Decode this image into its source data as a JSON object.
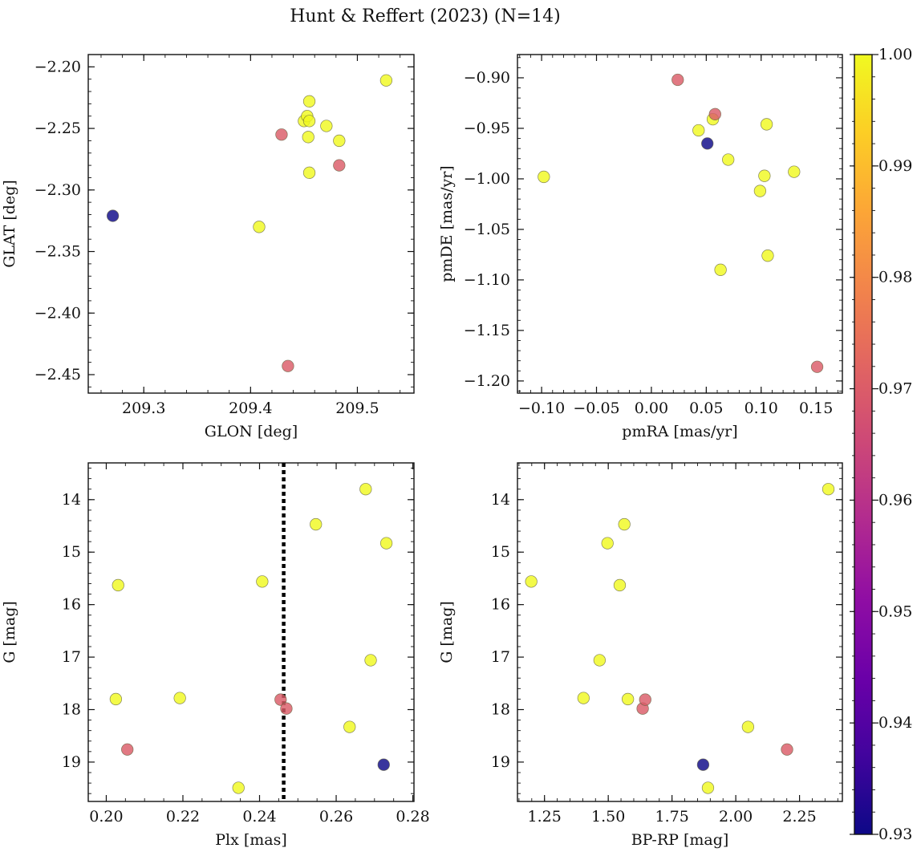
{
  "title": "Hunt & Reffert (2023) (N=14)",
  "chart_data": {
    "type": "scatter",
    "colormap": "plasma",
    "colorbar": {
      "range": [
        0.93,
        1.0
      ],
      "ticks": [
        0.93,
        0.94,
        0.95,
        0.96,
        0.97,
        0.98,
        0.99,
        1.0
      ],
      "tick_labels": [
        "0.93",
        "0.94",
        "0.95",
        "0.96",
        "0.97",
        "0.98",
        "0.99",
        "1.00"
      ]
    },
    "panels": [
      {
        "name": "glon-glat",
        "xlabel": "GLON [deg]",
        "ylabel": "GLAT [deg]",
        "xlim": [
          209.248,
          209.553
        ],
        "ylim": [
          -2.465,
          -2.19
        ],
        "y_inverted": false,
        "xticks": [
          209.3,
          209.4,
          209.5
        ],
        "xtick_labels": [
          "209.3",
          "209.4",
          "209.5"
        ],
        "yticks": [
          -2.2,
          -2.25,
          -2.3,
          -2.35,
          -2.4,
          -2.45
        ],
        "ytick_labels": [
          "−2.20",
          "−2.25",
          "−2.30",
          "−2.35",
          "−2.40",
          "−2.45"
        ],
        "x_minor_step": 0.02,
        "y_minor_step": 0.01,
        "points": [
          {
            "x": 209.271,
            "y": -2.321,
            "c": 0.93
          },
          {
            "x": 209.408,
            "y": -2.33,
            "c": 1.0
          },
          {
            "x": 209.429,
            "y": -2.255,
            "c": 0.97
          },
          {
            "x": 209.435,
            "y": -2.443,
            "c": 0.97
          },
          {
            "x": 209.45,
            "y": -2.244,
            "c": 1.0
          },
          {
            "x": 209.453,
            "y": -2.24,
            "c": 1.0
          },
          {
            "x": 209.454,
            "y": -2.257,
            "c": 1.0
          },
          {
            "x": 209.455,
            "y": -2.228,
            "c": 1.0
          },
          {
            "x": 209.455,
            "y": -2.244,
            "c": 1.0
          },
          {
            "x": 209.455,
            "y": -2.286,
            "c": 1.0
          },
          {
            "x": 209.471,
            "y": -2.248,
            "c": 1.0
          },
          {
            "x": 209.483,
            "y": -2.26,
            "c": 1.0
          },
          {
            "x": 209.483,
            "y": -2.28,
            "c": 0.97
          },
          {
            "x": 209.527,
            "y": -2.211,
            "c": 1.0
          }
        ]
      },
      {
        "name": "pmra-pmde",
        "xlabel": "pmRA [mas/yr]",
        "ylabel": "pmDE [mas/yr]",
        "xlim": [
          -0.122,
          0.174
        ],
        "ylim": [
          -1.212,
          -0.877
        ],
        "y_inverted": false,
        "xticks": [
          -0.1,
          -0.05,
          0.0,
          0.05,
          0.1,
          0.15
        ],
        "xtick_labels": [
          "−0.10",
          "−0.05",
          "0.00",
          "0.05",
          "0.10",
          "0.15"
        ],
        "yticks": [
          -0.9,
          -0.95,
          -1.0,
          -1.05,
          -1.1,
          -1.15,
          -1.2
        ],
        "ytick_labels": [
          "−0.90",
          "−0.95",
          "−1.00",
          "−1.05",
          "−1.10",
          "−1.15",
          "−1.20"
        ],
        "x_minor_step": 0.01,
        "y_minor_step": 0.01,
        "points": [
          {
            "x": -0.098,
            "y": -0.998,
            "c": 1.0
          },
          {
            "x": 0.024,
            "y": -0.902,
            "c": 0.97
          },
          {
            "x": 0.043,
            "y": -0.952,
            "c": 1.0
          },
          {
            "x": 0.051,
            "y": -0.965,
            "c": 0.93
          },
          {
            "x": 0.056,
            "y": -0.941,
            "c": 1.0
          },
          {
            "x": 0.058,
            "y": -0.936,
            "c": 0.97
          },
          {
            "x": 0.063,
            "y": -1.09,
            "c": 1.0
          },
          {
            "x": 0.07,
            "y": -0.981,
            "c": 1.0
          },
          {
            "x": 0.099,
            "y": -1.012,
            "c": 1.0
          },
          {
            "x": 0.103,
            "y": -0.997,
            "c": 1.0
          },
          {
            "x": 0.105,
            "y": -0.946,
            "c": 1.0
          },
          {
            "x": 0.106,
            "y": -1.076,
            "c": 1.0
          },
          {
            "x": 0.13,
            "y": -0.993,
            "c": 1.0
          },
          {
            "x": 0.151,
            "y": -1.186,
            "c": 0.97
          }
        ]
      },
      {
        "name": "plx-g",
        "xlabel": "Plx [mas]",
        "ylabel": "G [mag]",
        "xlim": [
          0.1953,
          0.2803
        ],
        "ylim": [
          13.3,
          19.75
        ],
        "y_inverted": true,
        "xticks": [
          0.2,
          0.22,
          0.24,
          0.26,
          0.28
        ],
        "xtick_labels": [
          "0.20",
          "0.22",
          "0.24",
          "0.26",
          "0.28"
        ],
        "yticks": [
          14,
          15,
          16,
          17,
          18,
          19
        ],
        "ytick_labels": [
          "14",
          "15",
          "16",
          "17",
          "18",
          "19"
        ],
        "x_minor_step": 0.005,
        "y_minor_step": 0.2,
        "vline": {
          "x": 0.2463,
          "style": "dotted"
        },
        "points": [
          {
            "x": 0.2025,
            "y": 17.8,
            "c": 1.0
          },
          {
            "x": 0.2031,
            "y": 15.63,
            "c": 1.0
          },
          {
            "x": 0.2055,
            "y": 18.76,
            "c": 0.97
          },
          {
            "x": 0.2192,
            "y": 17.78,
            "c": 1.0
          },
          {
            "x": 0.2345,
            "y": 19.49,
            "c": 1.0
          },
          {
            "x": 0.2407,
            "y": 15.56,
            "c": 1.0
          },
          {
            "x": 0.2455,
            "y": 17.81,
            "c": 0.97
          },
          {
            "x": 0.247,
            "y": 17.98,
            "c": 0.97
          },
          {
            "x": 0.2547,
            "y": 14.47,
            "c": 1.0
          },
          {
            "x": 0.2635,
            "y": 18.33,
            "c": 1.0
          },
          {
            "x": 0.2677,
            "y": 13.8,
            "c": 1.0
          },
          {
            "x": 0.269,
            "y": 17.06,
            "c": 1.0
          },
          {
            "x": 0.2724,
            "y": 19.05,
            "c": 0.93
          },
          {
            "x": 0.2731,
            "y": 14.83,
            "c": 1.0
          }
        ]
      },
      {
        "name": "bprp-g",
        "xlabel": "BP-RP [mag]",
        "ylabel": "G [mag]",
        "xlim": [
          1.144,
          2.418
        ],
        "ylim": [
          13.3,
          19.75
        ],
        "y_inverted": true,
        "xticks": [
          1.25,
          1.5,
          1.75,
          2.0,
          2.25
        ],
        "xtick_labels": [
          "1.25",
          "1.50",
          "1.75",
          "2.00",
          "2.25"
        ],
        "yticks": [
          14,
          15,
          16,
          17,
          18,
          19
        ],
        "ytick_labels": [
          "14",
          "15",
          "16",
          "17",
          "18",
          "19"
        ],
        "x_minor_step": 0.05,
        "y_minor_step": 0.2,
        "points": [
          {
            "x": 1.198,
            "y": 15.56,
            "c": 1.0
          },
          {
            "x": 1.403,
            "y": 17.78,
            "c": 1.0
          },
          {
            "x": 1.466,
            "y": 17.06,
            "c": 1.0
          },
          {
            "x": 1.497,
            "y": 14.83,
            "c": 1.0
          },
          {
            "x": 1.545,
            "y": 15.63,
            "c": 1.0
          },
          {
            "x": 1.563,
            "y": 14.47,
            "c": 1.0
          },
          {
            "x": 1.577,
            "y": 17.8,
            "c": 1.0
          },
          {
            "x": 1.635,
            "y": 17.98,
            "c": 0.97
          },
          {
            "x": 1.645,
            "y": 17.81,
            "c": 0.97
          },
          {
            "x": 1.872,
            "y": 19.05,
            "c": 0.93
          },
          {
            "x": 1.891,
            "y": 19.49,
            "c": 1.0
          },
          {
            "x": 2.048,
            "y": 18.33,
            "c": 1.0
          },
          {
            "x": 2.201,
            "y": 18.76,
            "c": 0.97
          },
          {
            "x": 2.363,
            "y": 13.8,
            "c": 1.0
          }
        ]
      }
    ]
  }
}
